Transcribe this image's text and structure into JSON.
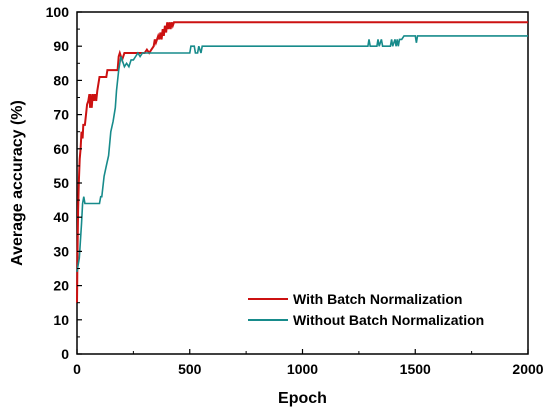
{
  "chart_data": {
    "type": "line",
    "title": "",
    "xlabel": "Epoch",
    "ylabel": "Average accuracy (%)",
    "xlim": [
      0,
      2000
    ],
    "ylim": [
      0,
      100
    ],
    "xticks": [
      0,
      500,
      1000,
      1500,
      2000
    ],
    "yticks": [
      0,
      10,
      20,
      30,
      40,
      50,
      60,
      70,
      80,
      90,
      100
    ],
    "grid": false,
    "legend_position": "bottom-right",
    "series": [
      {
        "name": "With Batch Normalization",
        "color": "#cc1111",
        "points": [
          [
            0,
            15
          ],
          [
            2,
            30
          ],
          [
            5,
            42
          ],
          [
            8,
            50
          ],
          [
            12,
            57
          ],
          [
            16,
            60
          ],
          [
            20,
            65
          ],
          [
            25,
            63
          ],
          [
            28,
            67
          ],
          [
            35,
            67
          ],
          [
            40,
            70
          ],
          [
            45,
            73
          ],
          [
            50,
            74
          ],
          [
            55,
            76
          ],
          [
            58,
            72
          ],
          [
            60,
            76
          ],
          [
            65,
            72
          ],
          [
            70,
            76
          ],
          [
            75,
            74
          ],
          [
            80,
            76
          ],
          [
            85,
            74
          ],
          [
            90,
            77
          ],
          [
            100,
            81
          ],
          [
            130,
            81
          ],
          [
            135,
            83
          ],
          [
            180,
            83
          ],
          [
            185,
            87
          ],
          [
            190,
            88
          ],
          [
            200,
            86
          ],
          [
            210,
            88
          ],
          [
            300,
            88
          ],
          [
            310,
            89
          ],
          [
            320,
            88
          ],
          [
            330,
            89
          ],
          [
            340,
            90
          ],
          [
            345,
            92
          ],
          [
            350,
            91
          ],
          [
            360,
            93
          ],
          [
            365,
            92
          ],
          [
            370,
            94
          ],
          [
            375,
            92
          ],
          [
            380,
            95
          ],
          [
            385,
            93
          ],
          [
            390,
            96
          ],
          [
            395,
            94
          ],
          [
            400,
            97
          ],
          [
            405,
            95
          ],
          [
            410,
            97
          ],
          [
            415,
            95
          ],
          [
            420,
            97
          ],
          [
            425,
            96
          ],
          [
            430,
            97
          ],
          [
            2000,
            97
          ]
        ]
      },
      {
        "name": "Without Batch Normalization",
        "color": "#178b8b",
        "points": [
          [
            0,
            24
          ],
          [
            5,
            26
          ],
          [
            10,
            28
          ],
          [
            15,
            33
          ],
          [
            20,
            38
          ],
          [
            25,
            44
          ],
          [
            30,
            46
          ],
          [
            35,
            44
          ],
          [
            40,
            44
          ],
          [
            100,
            44
          ],
          [
            105,
            46
          ],
          [
            110,
            46
          ],
          [
            120,
            52
          ],
          [
            130,
            55
          ],
          [
            140,
            58
          ],
          [
            150,
            65
          ],
          [
            160,
            68
          ],
          [
            170,
            72
          ],
          [
            175,
            77
          ],
          [
            180,
            80
          ],
          [
            185,
            83
          ],
          [
            190,
            85
          ],
          [
            195,
            87
          ],
          [
            200,
            86
          ],
          [
            210,
            84
          ],
          [
            220,
            85
          ],
          [
            230,
            84
          ],
          [
            240,
            86
          ],
          [
            250,
            86
          ],
          [
            260,
            87
          ],
          [
            270,
            88
          ],
          [
            280,
            87
          ],
          [
            290,
            88
          ],
          [
            500,
            88
          ],
          [
            505,
            90
          ],
          [
            520,
            90
          ],
          [
            525,
            88
          ],
          [
            535,
            88
          ],
          [
            540,
            90
          ],
          [
            550,
            88
          ],
          [
            555,
            90
          ],
          [
            560,
            90
          ],
          [
            1290,
            90
          ],
          [
            1295,
            92
          ],
          [
            1300,
            90
          ],
          [
            1330,
            90
          ],
          [
            1335,
            92
          ],
          [
            1340,
            90
          ],
          [
            1350,
            92
          ],
          [
            1355,
            90
          ],
          [
            1390,
            90
          ],
          [
            1395,
            92
          ],
          [
            1400,
            90
          ],
          [
            1410,
            92
          ],
          [
            1415,
            90
          ],
          [
            1420,
            92
          ],
          [
            1425,
            90
          ],
          [
            1430,
            92
          ],
          [
            1440,
            92
          ],
          [
            1450,
            93
          ],
          [
            1500,
            93
          ],
          [
            1505,
            91
          ],
          [
            1510,
            93
          ],
          [
            2000,
            93
          ]
        ]
      }
    ]
  }
}
